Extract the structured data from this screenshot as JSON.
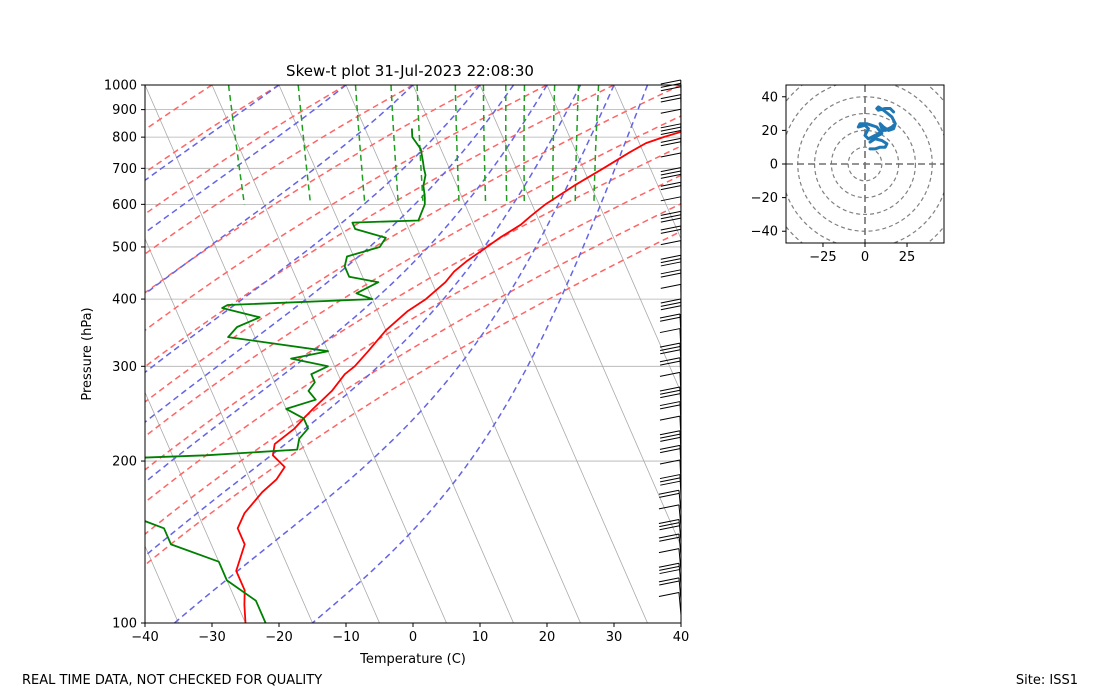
{
  "footer": {
    "quality_note": "REAL TIME DATA, NOT CHECKED FOR QUALITY",
    "site": "Site: ISS1"
  },
  "colors": {
    "temperature": "#ff0000",
    "dewpoint": "#008000",
    "dry_adiabat": "#ff6464",
    "moist_adiabat": "#6464e6",
    "mixing_ratio": "#1f9e1f",
    "isotherm": "#aaaaaa",
    "hodograph": "#1f77b4"
  },
  "chart_data": [
    {
      "type": "line",
      "title": "Skew-t plot 31-Jul-2023 22:08:30",
      "xlabel": "Temperature (C)",
      "ylabel": "Pressure (hPa)",
      "xlim": [
        -40,
        40
      ],
      "ylim": [
        1000,
        100
      ],
      "y_scale": "log",
      "skew": 35,
      "grid": true,
      "x_ticks": [
        -40,
        -30,
        -20,
        -10,
        0,
        10,
        20,
        30,
        40
      ],
      "y_ticks": [
        1000,
        900,
        800,
        700,
        600,
        500,
        400,
        300,
        200,
        100
      ],
      "dry_adiabats_theta_c": [
        -30,
        -20,
        -10,
        0,
        10,
        20,
        30,
        40,
        50,
        60,
        70,
        80,
        90
      ],
      "moist_adiabats_start_c": [
        -20,
        -10,
        0,
        10,
        15,
        20,
        25,
        30,
        35
      ],
      "mixing_ratio_lines_gkg": [
        0.4,
        1,
        2,
        3,
        4,
        6,
        8,
        10,
        12,
        16,
        20,
        24
      ],
      "series": [
        {
          "color": "#ff0000",
          "p": [
            830,
            825,
            800,
            780,
            750,
            700,
            650,
            600,
            590,
            570,
            550,
            520,
            500,
            470,
            450,
            430,
            400,
            380,
            350,
            320,
            300,
            290,
            270,
            250,
            240,
            230,
            215,
            205,
            195,
            185,
            175,
            160,
            150,
            140,
            125,
            115,
            108,
            100
          ],
          "t": [
            40,
            38,
            34,
            31,
            28,
            23,
            17.5,
            12,
            11,
            9,
            7,
            3,
            0.5,
            -3.5,
            -6,
            -8,
            -12,
            -15.5,
            -20,
            -24,
            -27,
            -29,
            -32,
            -36,
            -38,
            -40,
            -44,
            -45,
            -44,
            -46,
            -49,
            -53,
            -55,
            -55,
            -58,
            -58,
            -59,
            -60
          ]
        },
        {
          "color": "#008000",
          "p": [
            830,
            800,
            760,
            720,
            700,
            680,
            650,
            620,
            600,
            580,
            560,
            555,
            540,
            520,
            500,
            480,
            460,
            440,
            430,
            410,
            400,
            390,
            385,
            370,
            355,
            340,
            320,
            310,
            300,
            290,
            280,
            270,
            260,
            250,
            240,
            230,
            220,
            210,
            205,
            202,
            200,
            195,
            185,
            175,
            170,
            160,
            150,
            140,
            130,
            120,
            110,
            100
          ],
          "t": [
            -3,
            -3.5,
            -3,
            -3.5,
            -3.8,
            -4,
            -5,
            -5.5,
            -6,
            -7,
            -8,
            -18,
            -18,
            -14,
            -15.5,
            -21,
            -22,
            -22,
            -18,
            -22,
            -20,
            -42,
            -43,
            -38,
            -42,
            -44,
            -30,
            -36,
            -31,
            -34,
            -34,
            -35.5,
            -35,
            -40,
            -38,
            -38,
            -40,
            -41,
            -55,
            -69,
            -71,
            -71,
            -74,
            -72,
            -72,
            -71,
            -66,
            -66,
            -60,
            -60,
            -57,
            -57
          ]
        }
      ]
    },
    {
      "type": "line",
      "title": "",
      "xlim": [
        -47,
        47
      ],
      "ylim": [
        -47,
        47
      ],
      "x_ticks": [
        -25,
        0,
        25
      ],
      "y_ticks": [
        -40,
        -20,
        0,
        20,
        40
      ],
      "range_rings": [
        10,
        20,
        30,
        40,
        50,
        60
      ],
      "series": [
        {
          "color": "#1f77b4",
          "u": [
            3,
            6,
            9,
            12,
            13,
            10,
            6,
            3,
            5,
            8,
            10,
            7,
            4,
            1,
            -3,
            -4,
            0,
            2,
            1,
            0,
            2,
            4,
            8,
            11,
            14,
            16,
            17,
            15,
            12,
            10,
            9,
            11,
            14,
            17,
            18,
            16,
            11,
            8,
            7,
            8,
            12,
            15,
            17
          ],
          "v": [
            9,
            9,
            10,
            10,
            12,
            14,
            15,
            13,
            15,
            17,
            18,
            22,
            23,
            24,
            24,
            22,
            23,
            21,
            19,
            17,
            15,
            16,
            18,
            20,
            21,
            22,
            23,
            21,
            20,
            21,
            24,
            22,
            20,
            21,
            24,
            28,
            32,
            34,
            33,
            32,
            33,
            33,
            31
          ]
        }
      ]
    }
  ]
}
